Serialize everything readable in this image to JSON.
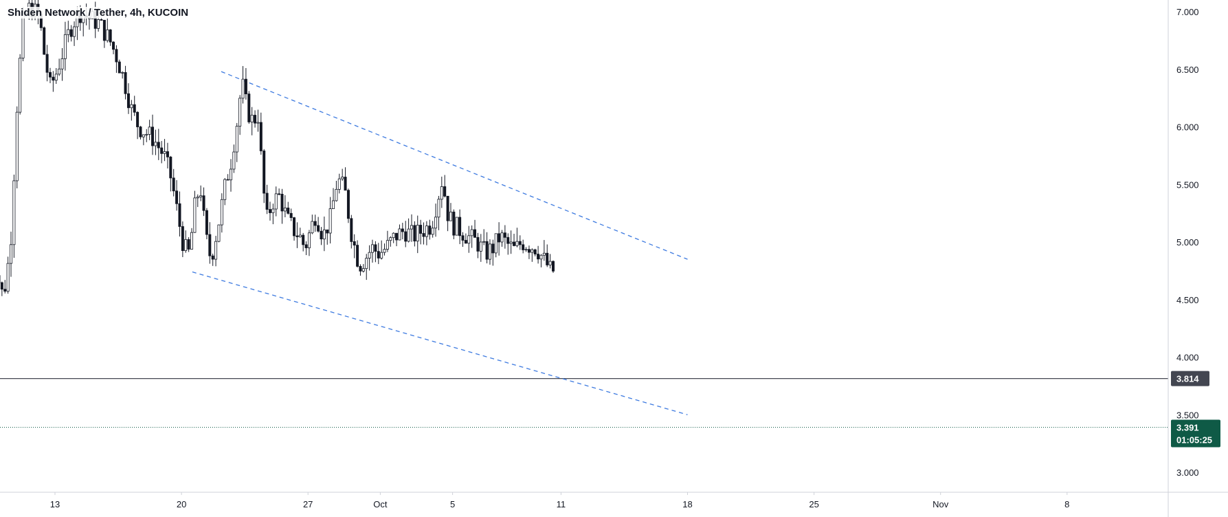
{
  "chart_data": {
    "type": "candlestick",
    "title": "Shiden Network / Tether, 4h, KUCOIN",
    "ylim": [
      2.82,
      7.1
    ],
    "y_ticks": [
      "7.000",
      "6.500",
      "6.000",
      "5.500",
      "5.000",
      "4.500",
      "4.000",
      "3.500",
      "3.000"
    ],
    "y_tick_values": [
      7.0,
      6.5,
      6.0,
      5.5,
      5.0,
      4.5,
      4.0,
      3.5,
      3.0
    ],
    "x_range_days": [
      9.4,
      40.8
    ],
    "x_ticks": [
      {
        "label": "13",
        "day": 13
      },
      {
        "label": "20",
        "day": 20
      },
      {
        "label": "27",
        "day": 27
      },
      {
        "label": "Oct",
        "day": 31
      },
      {
        "label": "5",
        "day": 35
      },
      {
        "label": "11",
        "day": 41
      },
      {
        "label": "18",
        "day": 48
      },
      {
        "label": "25",
        "day": 55
      },
      {
        "label": "Nov",
        "day": 62
      },
      {
        "label": "8",
        "day": 69
      }
    ],
    "price_path": [
      [
        9.4,
        5.05
      ],
      [
        9.6,
        4.95
      ],
      [
        9.8,
        4.85
      ],
      [
        10.0,
        4.72
      ],
      [
        10.2,
        4.55
      ],
      [
        10.4,
        4.62
      ],
      [
        10.7,
        4.95
      ],
      [
        10.9,
        5.6
      ],
      [
        11.1,
        6.3
      ],
      [
        11.4,
        6.9
      ],
      [
        11.8,
        7.05
      ],
      [
        12.3,
        6.95
      ],
      [
        12.6,
        6.6
      ],
      [
        12.9,
        6.35
      ],
      [
        13.2,
        6.45
      ],
      [
        13.6,
        6.65
      ],
      [
        14.0,
        6.85
      ],
      [
        14.5,
        7.0
      ],
      [
        15.0,
        6.95
      ],
      [
        15.6,
        6.9
      ],
      [
        16.2,
        6.75
      ],
      [
        16.6,
        6.6
      ],
      [
        17.0,
        6.4
      ],
      [
        17.4,
        6.15
      ],
      [
        17.8,
        6.0
      ],
      [
        18.2,
        5.95
      ],
      [
        18.6,
        5.9
      ],
      [
        19.2,
        5.75
      ],
      [
        19.6,
        5.55
      ],
      [
        20.0,
        5.2
      ],
      [
        20.3,
        4.95
      ],
      [
        20.6,
        4.9
      ],
      [
        20.9,
        5.3
      ],
      [
        21.2,
        5.5
      ],
      [
        21.5,
        5.05
      ],
      [
        21.8,
        4.85
      ],
      [
        22.2,
        5.15
      ],
      [
        22.6,
        5.5
      ],
      [
        22.9,
        5.7
      ],
      [
        23.3,
        6.1
      ],
      [
        23.5,
        6.4
      ],
      [
        23.8,
        6.15
      ],
      [
        24.1,
        6.05
      ],
      [
        24.4,
        6.1
      ],
      [
        24.7,
        5.45
      ],
      [
        24.9,
        5.2
      ],
      [
        25.2,
        5.35
      ],
      [
        25.6,
        5.4
      ],
      [
        26.0,
        5.2
      ],
      [
        26.4,
        5.1
      ],
      [
        26.7,
        5.05
      ],
      [
        27.0,
        4.95
      ],
      [
        27.3,
        5.1
      ],
      [
        27.6,
        5.25
      ],
      [
        28.0,
        5.05
      ],
      [
        28.4,
        5.2
      ],
      [
        28.8,
        5.55
      ],
      [
        29.2,
        5.45
      ],
      [
        29.6,
        5.05
      ],
      [
        30.0,
        4.8
      ],
      [
        30.3,
        4.85
      ],
      [
        30.7,
        4.95
      ],
      [
        31.1,
        4.9
      ],
      [
        31.5,
        4.95
      ],
      [
        32.0,
        5.05
      ],
      [
        32.5,
        5.1
      ],
      [
        33.0,
        5.05
      ],
      [
        33.5,
        5.1
      ],
      [
        34.0,
        5.15
      ],
      [
        34.3,
        5.35
      ],
      [
        34.6,
        5.55
      ],
      [
        34.9,
        5.25
      ],
      [
        35.2,
        5.15
      ],
      [
        35.6,
        5.1
      ],
      [
        36.0,
        5.05
      ],
      [
        36.5,
        5.0
      ],
      [
        37.0,
        4.9
      ],
      [
        37.4,
        4.95
      ],
      [
        37.8,
        5.05
      ],
      [
        38.2,
        4.98
      ],
      [
        38.6,
        4.93
      ],
      [
        39.0,
        5.0
      ],
      [
        39.4,
        4.97
      ],
      [
        39.8,
        4.95
      ],
      [
        40.2,
        4.85
      ],
      [
        40.6,
        4.75
      ]
    ],
    "trendlines": [
      {
        "style": "dashed",
        "points": [
          [
            22.2,
            6.48
          ],
          [
            48.0,
            4.85
          ]
        ]
      },
      {
        "style": "dashed",
        "points": [
          [
            20.6,
            4.74
          ],
          [
            48.0,
            3.5
          ]
        ]
      }
    ],
    "last_price": {
      "value": 3.391,
      "label": "3.391",
      "countdown": "01:05:25",
      "color": "#0f5a46"
    },
    "level_marker": {
      "value": 3.814,
      "label": "3.814",
      "color": "#434651"
    },
    "colors": {
      "up": "#ffffff",
      "down": "#131722",
      "trendline": "#3d7ae0",
      "grid": "#e0e3eb"
    }
  }
}
